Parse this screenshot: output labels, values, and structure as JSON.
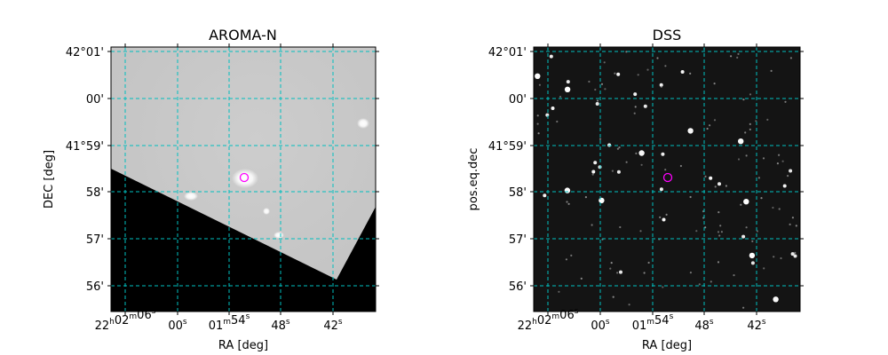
{
  "figure": {
    "background": "#ffffff",
    "grid_color": "#00bfbf",
    "marker_color": "#ff00ff",
    "panels": [
      {
        "title": "AROMA-N",
        "xlabel": "RA [deg]",
        "ylabel": "DEC [deg]",
        "image": "grayscale survey cutout with a black no-coverage region in the lower left",
        "xticks": [
          {
            "main": "22",
            "parts": [
              [
                "22",
                "h"
              ],
              [
                "02",
                "m"
              ],
              [
                "06",
                "s"
              ]
            ]
          },
          {
            "main": "00",
            "parts": [
              [
                "00",
                "s"
              ]
            ]
          },
          {
            "main": "01",
            "parts": [
              [
                "01",
                "m"
              ],
              [
                "54",
                "s"
              ]
            ]
          },
          {
            "main": "48",
            "parts": [
              [
                "48",
                "s"
              ]
            ]
          },
          {
            "main": "42",
            "parts": [
              [
                "42",
                "s"
              ]
            ]
          }
        ],
        "yticks": [
          "42°01'",
          "00'",
          "41°59'",
          "58'",
          "57'",
          "56'"
        ],
        "marker": "circle"
      },
      {
        "title": "DSS",
        "xlabel": "RA [deg]",
        "ylabel": "pos.eq.dec",
        "image": "dark star field",
        "xticks": [
          {
            "main": "22",
            "parts": [
              [
                "22",
                "h"
              ],
              [
                "02",
                "m"
              ],
              [
                "06",
                "s"
              ]
            ]
          },
          {
            "main": "00",
            "parts": [
              [
                "00",
                "s"
              ]
            ]
          },
          {
            "main": "01",
            "parts": [
              [
                "01",
                "m"
              ],
              [
                "54",
                "s"
              ]
            ]
          },
          {
            "main": "48",
            "parts": [
              [
                "48",
                "s"
              ]
            ]
          },
          {
            "main": "42",
            "parts": [
              [
                "42",
                "s"
              ]
            ]
          }
        ],
        "yticks": [
          "42°01'",
          "00'",
          "41°59'",
          "58'",
          "57'",
          "56'"
        ],
        "marker": "circle"
      }
    ]
  }
}
